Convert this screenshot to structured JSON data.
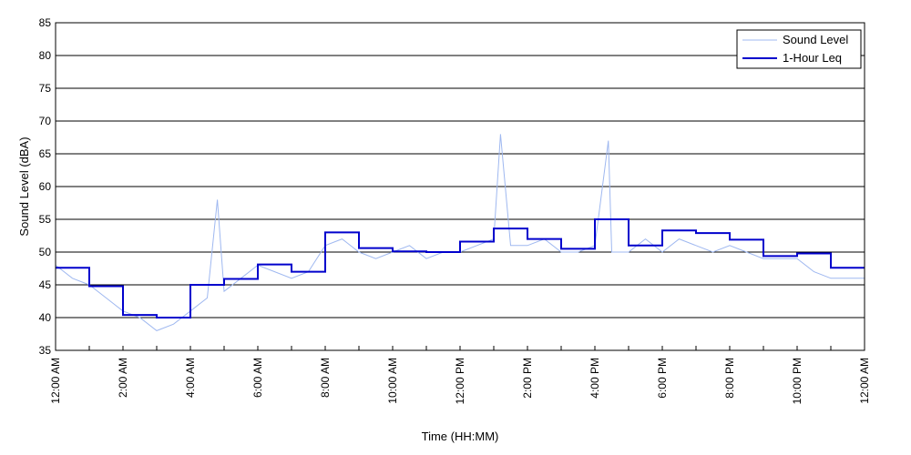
{
  "chart_data": {
    "type": "line",
    "title": "",
    "xlabel": "Time (HH:MM)",
    "ylabel": "Sound Level (dBA)",
    "xlim": [
      0,
      24
    ],
    "ylim": [
      35,
      85
    ],
    "yticks": [
      35,
      40,
      45,
      50,
      55,
      60,
      65,
      70,
      75,
      80,
      85
    ],
    "xticks": [
      {
        "x": 0,
        "label": "12:00 AM"
      },
      {
        "x": 2,
        "label": "2:00 AM"
      },
      {
        "x": 4,
        "label": "4:00 AM"
      },
      {
        "x": 6,
        "label": "6:00 AM"
      },
      {
        "x": 8,
        "label": "8:00 AM"
      },
      {
        "x": 10,
        "label": "10:00 AM"
      },
      {
        "x": 12,
        "label": "12:00 PM"
      },
      {
        "x": 14,
        "label": "2:00 PM"
      },
      {
        "x": 16,
        "label": "4:00 PM"
      },
      {
        "x": 18,
        "label": "6:00 PM"
      },
      {
        "x": 20,
        "label": "8:00 PM"
      },
      {
        "x": 22,
        "label": "10:00 PM"
      },
      {
        "x": 24,
        "label": "12:00 AM"
      }
    ],
    "grid": "horizontal",
    "legend_position": "top-right",
    "series": [
      {
        "name": "Sound Level",
        "color": "#9fb8f0",
        "style": "thin",
        "x": [
          0.0,
          0.5,
          1.0,
          1.5,
          2.0,
          2.5,
          3.0,
          3.5,
          4.0,
          4.5,
          4.8,
          5.0,
          5.5,
          6.0,
          6.5,
          7.0,
          7.5,
          8.0,
          8.5,
          9.0,
          9.5,
          10.0,
          10.5,
          11.0,
          11.5,
          12.0,
          12.5,
          13.0,
          13.2,
          13.5,
          14.0,
          14.5,
          15.0,
          15.5,
          16.0,
          16.4,
          16.5,
          17.0,
          17.5,
          18.0,
          18.5,
          19.0,
          19.5,
          20.0,
          20.5,
          21.0,
          21.5,
          22.0,
          22.5,
          23.0,
          23.5,
          24.0
        ],
        "y": [
          48,
          46,
          45,
          43,
          41,
          40,
          38,
          39,
          41,
          43,
          58,
          44,
          46,
          48,
          47,
          46,
          47,
          51,
          52,
          50,
          49,
          50,
          51,
          49,
          50,
          50,
          51,
          52,
          68,
          51,
          51,
          52,
          50,
          50,
          51,
          67,
          50,
          50,
          52,
          50,
          52,
          51,
          50,
          51,
          50,
          49,
          49,
          49,
          47,
          46,
          46,
          46
        ]
      },
      {
        "name": "1-Hour Leq",
        "color": "#0000cc",
        "style": "step",
        "x": [
          0,
          1,
          2,
          3,
          4,
          5,
          6,
          7,
          8,
          9,
          10,
          11,
          12,
          13,
          14,
          15,
          16,
          17,
          18,
          19,
          20,
          21,
          22,
          23,
          24
        ],
        "y": [
          47.6,
          44.8,
          40.4,
          40.0,
          45.0,
          45.9,
          48.1,
          47.0,
          53.0,
          50.6,
          50.1,
          50.0,
          51.6,
          53.6,
          52.0,
          50.5,
          55.0,
          51.0,
          53.3,
          52.9,
          51.9,
          49.4,
          49.8,
          47.6,
          47.6
        ]
      }
    ]
  }
}
